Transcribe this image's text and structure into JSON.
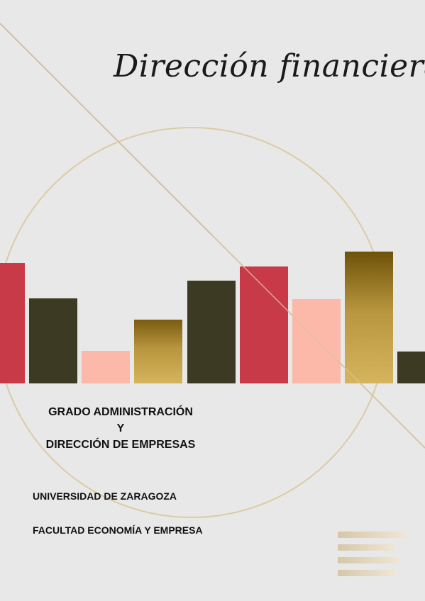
{
  "title": "Dirección financiera",
  "degree": {
    "line1": "GRADO ADMINISTRACIÓN",
    "line2": "Y",
    "line3": "DIRECCIÓN DE EMPRESAS"
  },
  "university": "UNIVERSIDAD DE ZARAGOZA",
  "faculty": "FACULTAD ECONOMÍA Y EMPRESA",
  "colors": {
    "background": "#e8e8e8",
    "crimson": "#c93a48",
    "dark_olive": "#3d3a24",
    "salmon": "#fcb8a8",
    "gold": "#d4b45c",
    "gold_dark": "#7a5c10",
    "line_gold": "#d8c49c"
  }
}
